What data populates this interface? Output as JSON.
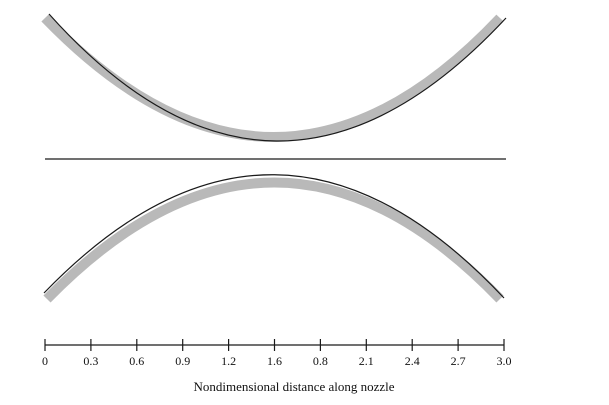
{
  "axis": {
    "xlabel": "Nondimensional distance along nozzle",
    "ticks": [
      "0",
      "0.3",
      "0.6",
      "0.9",
      "1.2",
      "1.6",
      "0.8",
      "2.1",
      "2.4",
      "2.7",
      "3.0"
    ]
  },
  "colors": {
    "wall_shading": "#b9b9b9",
    "wall_line": "#1a1a1a",
    "axis_line": "#1a1a1a",
    "text": "#111111"
  }
}
